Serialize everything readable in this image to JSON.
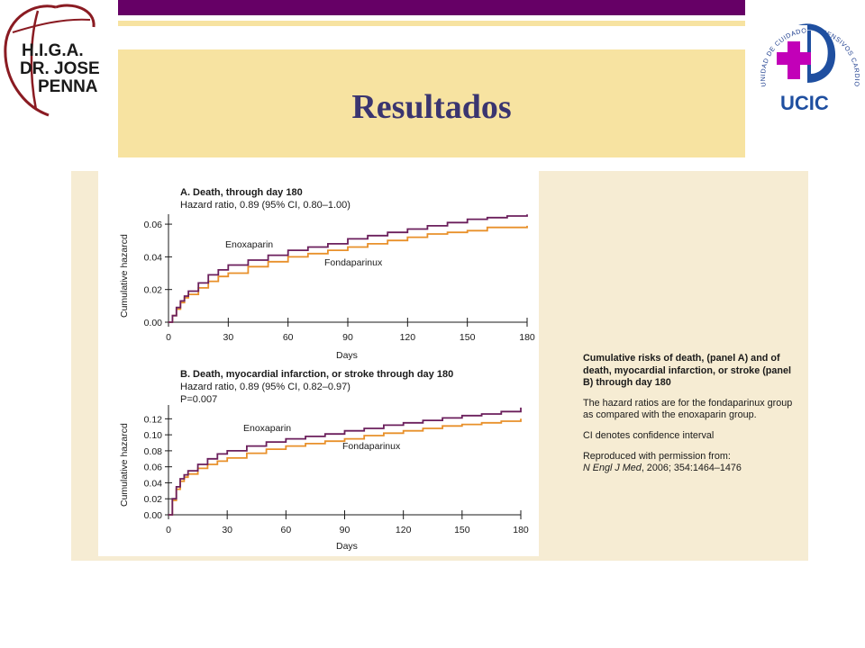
{
  "slide": {
    "title": "Resultados",
    "logo_left": {
      "lines": [
        "H.I.G.A.",
        "DR. JOSE",
        "PENNA"
      ]
    },
    "logo_right": {
      "ring_text": "UNIDAD DE CUIDADOS INTENSIVOS CARDIOVASCULARES",
      "acronym": "UCIC"
    },
    "colors": {
      "purple_bar": "#660066",
      "beige": "#f7e3a1",
      "title": "#3a3570",
      "figure_bg": "#f6ecd3",
      "enoxaparin": "#6b1f5c",
      "fondaparinux": "#e8902a"
    }
  },
  "caption": {
    "title": "Cumulative risks of death, (panel A) and of death, myocardial infarction, or stroke (panel B) through day 180",
    "note1": "The hazard ratios are for the fondaparinux group as compared with the enoxaparin group.",
    "note2": "CI denotes confidence interval",
    "source_prefix": "Reproduced with permission from:",
    "source_journal": "N Engl J Med",
    "source_rest": ", 2006; 354:1464–1476"
  },
  "chart_data": [
    {
      "type": "line",
      "panel_title": "A. Death, through day 180",
      "subtitle_lines": [
        "Hazard ratio, 0.89 (95% CI, 0.80–1.00)"
      ],
      "xlabel": "Days",
      "ylabel": "Cumulative hazarcd",
      "xlim": [
        0,
        180
      ],
      "ylim": [
        0,
        0.065
      ],
      "xticks": [
        0,
        30,
        60,
        90,
        120,
        150,
        180
      ],
      "yticks": [
        0.0,
        0.02,
        0.04,
        0.06
      ],
      "ytick_labels": [
        "0.00",
        "0.02",
        "0.04",
        "0.06"
      ],
      "grid": false,
      "series": [
        {
          "name": "Enoxaparin",
          "color": "#6b1f5c",
          "x": [
            0,
            2,
            4,
            6,
            8,
            10,
            15,
            20,
            25,
            30,
            40,
            50,
            60,
            70,
            80,
            90,
            100,
            110,
            120,
            130,
            140,
            150,
            160,
            170,
            180
          ],
          "y": [
            0,
            0.004,
            0.009,
            0.013,
            0.016,
            0.019,
            0.024,
            0.029,
            0.032,
            0.035,
            0.038,
            0.041,
            0.044,
            0.046,
            0.048,
            0.051,
            0.053,
            0.055,
            0.057,
            0.059,
            0.061,
            0.063,
            0.064,
            0.065,
            0.066
          ]
        },
        {
          "name": "Fondaparinux",
          "color": "#e8902a",
          "x": [
            0,
            2,
            4,
            6,
            8,
            10,
            15,
            20,
            25,
            30,
            40,
            50,
            60,
            70,
            80,
            90,
            100,
            110,
            120,
            130,
            140,
            150,
            160,
            170,
            180
          ],
          "y": [
            0,
            0.004,
            0.008,
            0.012,
            0.015,
            0.017,
            0.021,
            0.025,
            0.028,
            0.03,
            0.034,
            0.037,
            0.04,
            0.042,
            0.044,
            0.046,
            0.048,
            0.05,
            0.052,
            0.054,
            0.055,
            0.056,
            0.058,
            0.058,
            0.059
          ]
        }
      ]
    },
    {
      "type": "line",
      "panel_title": "B. Death, myocardial infarction, or stroke through day 180",
      "subtitle_lines": [
        "Hazard ratio, 0.89 (95% CI, 0.82–0.97)",
        "P=0.007"
      ],
      "xlabel": "Days",
      "ylabel": "Cumulative hazarcd",
      "xlim": [
        0,
        180
      ],
      "ylim": [
        0,
        0.135
      ],
      "xticks": [
        0,
        30,
        60,
        90,
        120,
        150,
        180
      ],
      "yticks": [
        0.0,
        0.02,
        0.04,
        0.06,
        0.08,
        0.1,
        0.12
      ],
      "ytick_labels": [
        "0.00",
        "0.02",
        "0.04",
        "0.06",
        "0.08",
        "0.10",
        "0.12"
      ],
      "grid": false,
      "series": [
        {
          "name": "Enoxaparin",
          "color": "#6b1f5c",
          "x": [
            0,
            2,
            4,
            6,
            8,
            10,
            15,
            20,
            25,
            30,
            40,
            50,
            60,
            70,
            80,
            90,
            100,
            110,
            120,
            130,
            140,
            150,
            160,
            170,
            180
          ],
          "y": [
            0,
            0.02,
            0.035,
            0.045,
            0.05,
            0.055,
            0.063,
            0.07,
            0.076,
            0.08,
            0.086,
            0.091,
            0.095,
            0.098,
            0.101,
            0.105,
            0.108,
            0.112,
            0.115,
            0.118,
            0.121,
            0.124,
            0.126,
            0.129,
            0.134
          ]
        },
        {
          "name": "Fondaparinux",
          "color": "#e8902a",
          "x": [
            0,
            2,
            4,
            6,
            8,
            10,
            15,
            20,
            25,
            30,
            40,
            50,
            60,
            70,
            80,
            90,
            100,
            110,
            120,
            130,
            140,
            150,
            160,
            170,
            180
          ],
          "y": [
            0,
            0.018,
            0.032,
            0.042,
            0.047,
            0.051,
            0.058,
            0.063,
            0.067,
            0.071,
            0.077,
            0.082,
            0.086,
            0.089,
            0.092,
            0.095,
            0.099,
            0.102,
            0.105,
            0.108,
            0.111,
            0.113,
            0.115,
            0.117,
            0.12
          ]
        }
      ]
    }
  ]
}
